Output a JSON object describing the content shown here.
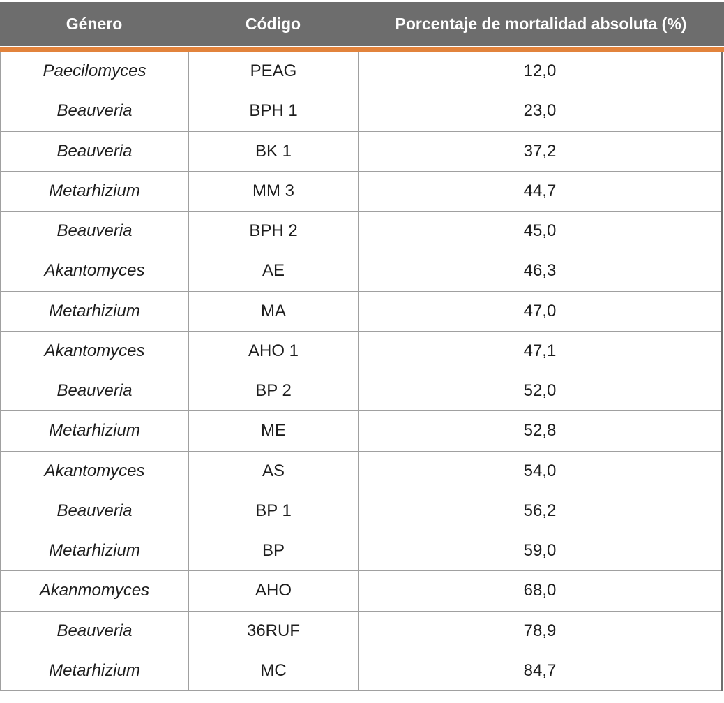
{
  "table": {
    "columns": [
      {
        "label": "Género"
      },
      {
        "label": "Código"
      },
      {
        "label": "Porcentaje de mortalidad absoluta (%)"
      }
    ],
    "rows": [
      {
        "genus": "Paecilomyces",
        "code": "PEAG",
        "mortality": "12,0"
      },
      {
        "genus": "Beauveria",
        "code": "BPH 1",
        "mortality": "23,0"
      },
      {
        "genus": "Beauveria",
        "code": "BK 1",
        "mortality": "37,2"
      },
      {
        "genus": "Metarhizium",
        "code": "MM 3",
        "mortality": "44,7"
      },
      {
        "genus": "Beauveria",
        "code": "BPH 2",
        "mortality": "45,0"
      },
      {
        "genus": "Akantomyces",
        "code": "AE",
        "mortality": "46,3"
      },
      {
        "genus": "Metarhizium",
        "code": "MA",
        "mortality": "47,0"
      },
      {
        "genus": "Akantomyces",
        "code": "AHO 1",
        "mortality": "47,1"
      },
      {
        "genus": "Beauveria",
        "code": "BP 2",
        "mortality": "52,0"
      },
      {
        "genus": "Metarhizium",
        "code": "ME",
        "mortality": "52,8"
      },
      {
        "genus": "Akantomyces",
        "code": "AS",
        "mortality": "54,0"
      },
      {
        "genus": "Beauveria",
        "code": "BP 1",
        "mortality": "56,2"
      },
      {
        "genus": "Metarhizium",
        "code": "BP",
        "mortality": "59,0"
      },
      {
        "genus": "Akanmomyces",
        "code": "AHO",
        "mortality": "68,0"
      },
      {
        "genus": "Beauveria",
        "code": "36RUF",
        "mortality": "78,9"
      },
      {
        "genus": "Metarhizium",
        "code": "MC",
        "mortality": "84,7"
      }
    ]
  },
  "colors": {
    "header_bg": "#6d6d6d",
    "header_text": "#ffffff",
    "accent_orange": "#e2833c",
    "grid_line": "#a0a0a0",
    "body_text": "#1d1d1d"
  }
}
